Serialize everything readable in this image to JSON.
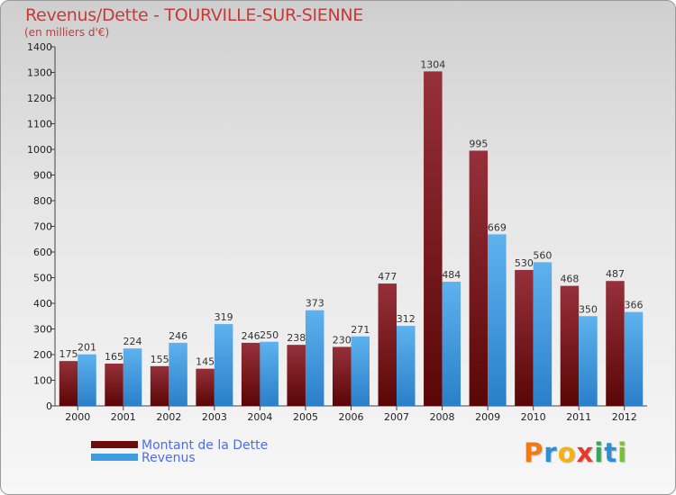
{
  "chart_data": {
    "type": "bar",
    "title": "Revenus/Dette - TOURVILLE-SUR-SIENNE",
    "subtitle": "(en milliers d'€)",
    "xlabel": "",
    "ylabel": "",
    "ylim": [
      0,
      1400
    ],
    "yticks": [
      0,
      100,
      200,
      300,
      400,
      500,
      600,
      700,
      800,
      900,
      1000,
      1100,
      1200,
      1300,
      1400
    ],
    "grid": false,
    "legend_position": "bottom-left",
    "categories": [
      "2000",
      "2001",
      "2002",
      "2003",
      "2004",
      "2005",
      "2006",
      "2007",
      "2008",
      "2009",
      "2010",
      "2011",
      "2012"
    ],
    "series": [
      {
        "name": "Montant de la Dette",
        "color": "#7c1515",
        "values": [
          175,
          165,
          155,
          145,
          246,
          238,
          230,
          477,
          1304,
          995,
          530,
          468,
          487
        ]
      },
      {
        "name": "Revenus",
        "color": "#3d9be4",
        "values": [
          201,
          224,
          246,
          319,
          250,
          373,
          271,
          312,
          484,
          669,
          560,
          350,
          366
        ]
      }
    ]
  },
  "legend": {
    "items": [
      {
        "label": "Montant de la Dette",
        "color": "#6b0d0d"
      },
      {
        "label": "Revenus",
        "color": "#3d9be4"
      }
    ]
  },
  "logo": {
    "letters": [
      "P",
      "r",
      "o",
      "x",
      "i",
      "t",
      "i"
    ],
    "colors": [
      "#f07a18",
      "#2c8fd6",
      "#f4b312",
      "#e53a2a",
      "#3aa55a",
      "#2c8fd6",
      "#7abf3a"
    ]
  }
}
